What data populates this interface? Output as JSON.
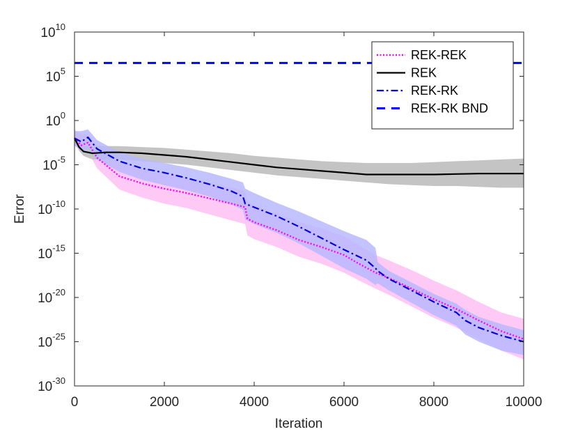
{
  "chart_data": {
    "type": "line",
    "title": "",
    "xlabel": "Iteration",
    "ylabel": "Error",
    "xlim": [
      0,
      10000
    ],
    "ylim_log10": [
      -30,
      10
    ],
    "y_scale": "log",
    "x_ticks": [
      0,
      2000,
      4000,
      6000,
      8000,
      10000
    ],
    "x_tick_labels": [
      "0",
      "2000",
      "4000",
      "6000",
      "8000",
      "10000"
    ],
    "y_ticks_exp": [
      10,
      5,
      0,
      -5,
      -10,
      -15,
      -20,
      -25,
      -30
    ],
    "y_tick_base": "10",
    "y_tick_exponents": [
      "10",
      "5",
      "0",
      "-5",
      "-10",
      "-15",
      "-20",
      "-25",
      "-30"
    ],
    "grid": false,
    "legend_position": "top-right",
    "series": [
      {
        "name": "REK-REK",
        "style": "dotted",
        "color": "#ff00ff",
        "band_color": "#ffbff5",
        "x": [
          0,
          150,
          300,
          500,
          1000,
          1500,
          2000,
          2500,
          3000,
          3500,
          3800,
          3850,
          4000,
          4500,
          5000,
          5500,
          6000,
          6300,
          6700,
          7000,
          7500,
          8000,
          8500,
          9000,
          9500,
          10000
        ],
        "log10_y": [
          -2,
          -2.8,
          -2.5,
          -4.2,
          -6.3,
          -7.1,
          -7.7,
          -8.2,
          -8.8,
          -9.4,
          -9.8,
          -11.1,
          -11.5,
          -12.4,
          -13.5,
          -14.3,
          -15.2,
          -16.1,
          -17.2,
          -17.8,
          -19.0,
          -20.2,
          -21.3,
          -22.6,
          -23.8,
          -24.7
        ],
        "log10_upper": [
          -1.0,
          -1.6,
          -1.6,
          -2.8,
          -4.6,
          -5.4,
          -6.0,
          -6.5,
          -7.0,
          -7.6,
          -8.0,
          -9.2,
          -9.6,
          -10.5,
          -11.5,
          -12.2,
          -13.1,
          -14.0,
          -15.2,
          -15.8,
          -16.9,
          -18.1,
          -19.2,
          -20.5,
          -21.7,
          -22.4
        ],
        "log10_lower": [
          -2.6,
          -3.6,
          -3.5,
          -5.4,
          -7.8,
          -8.7,
          -9.4,
          -9.9,
          -10.6,
          -11.3,
          -11.7,
          -13.0,
          -13.4,
          -14.3,
          -15.4,
          -16.2,
          -17.2,
          -18.0,
          -19.0,
          -19.7,
          -21.0,
          -22.3,
          -23.4,
          -24.7,
          -26.0,
          -27.0
        ]
      },
      {
        "name": "REK",
        "style": "solid",
        "color": "#000000",
        "band_color": "#c4c4c4",
        "x": [
          0,
          100,
          200,
          400,
          700,
          1000,
          1500,
          2000,
          2500,
          3000,
          3500,
          4000,
          4500,
          5000,
          5500,
          6000,
          6500,
          7000,
          7500,
          8000,
          8500,
          9000,
          9500,
          10000
        ],
        "log10_y": [
          -2,
          -3.0,
          -3.5,
          -3.7,
          -3.6,
          -3.6,
          -3.7,
          -3.9,
          -4.1,
          -4.4,
          -4.7,
          -5.0,
          -5.3,
          -5.5,
          -5.7,
          -5.9,
          -6.1,
          -6.1,
          -6.1,
          -6.1,
          -6.05,
          -6.0,
          -6.0,
          -6.0
        ],
        "log10_upper": [
          -1.8,
          -2.6,
          -2.8,
          -2.9,
          -2.9,
          -2.9,
          -3.0,
          -3.1,
          -3.3,
          -3.5,
          -3.7,
          -4.0,
          -4.2,
          -4.4,
          -4.6,
          -4.7,
          -4.8,
          -4.8,
          -4.8,
          -4.7,
          -4.6,
          -4.5,
          -4.4,
          -4.3
        ],
        "log10_lower": [
          -2.2,
          -3.4,
          -4.0,
          -4.4,
          -4.4,
          -4.4,
          -4.6,
          -4.8,
          -5.0,
          -5.3,
          -5.6,
          -5.9,
          -6.2,
          -6.4,
          -6.6,
          -6.8,
          -7.0,
          -7.2,
          -7.3,
          -7.4,
          -7.4,
          -7.5,
          -7.6,
          -7.6
        ]
      },
      {
        "name": "REK-RK",
        "style": "dashdot",
        "color": "#0000dd",
        "band_color": "#b8b8ff",
        "x": [
          0,
          150,
          300,
          500,
          1000,
          1500,
          2000,
          2500,
          3000,
          3500,
          3750,
          3800,
          4000,
          4500,
          5000,
          5500,
          6000,
          6500,
          6700,
          6750,
          7000,
          7500,
          8000,
          8500,
          8700,
          9000,
          9500,
          10000
        ],
        "log10_y": [
          -2,
          -2.4,
          -1.9,
          -3.2,
          -4.6,
          -5.4,
          -5.9,
          -6.5,
          -7.2,
          -8.0,
          -8.6,
          -9.4,
          -9.8,
          -10.8,
          -12.0,
          -13.3,
          -14.6,
          -15.8,
          -16.7,
          -17.0,
          -17.9,
          -19.2,
          -20.5,
          -21.7,
          -22.6,
          -23.4,
          -24.3,
          -25.0
        ],
        "log10_upper": [
          -1.2,
          -1.2,
          -1.0,
          -2.2,
          -3.6,
          -4.3,
          -4.8,
          -5.3,
          -5.9,
          -6.6,
          -7.0,
          -7.7,
          -8.2,
          -9.3,
          -10.3,
          -11.4,
          -12.5,
          -13.5,
          -14.4,
          -16.0,
          -17.0,
          -18.3,
          -19.6,
          -20.7,
          -21.4,
          -22.2,
          -23.0,
          -23.7
        ],
        "log10_lower": [
          -2.8,
          -3.5,
          -3.2,
          -4.4,
          -5.8,
          -6.7,
          -7.3,
          -7.9,
          -8.6,
          -9.5,
          -10.1,
          -11.2,
          -11.7,
          -12.7,
          -13.9,
          -15.3,
          -16.7,
          -17.9,
          -18.6,
          -18.4,
          -19.2,
          -20.6,
          -22.0,
          -23.2,
          -24.2,
          -25.0,
          -26.0,
          -26.5
        ]
      },
      {
        "name": "REK-RK BND",
        "style": "dashed",
        "color": "#0000ff",
        "x": [
          0,
          10000
        ],
        "log10_y": [
          6.5,
          6.5
        ]
      }
    ]
  }
}
